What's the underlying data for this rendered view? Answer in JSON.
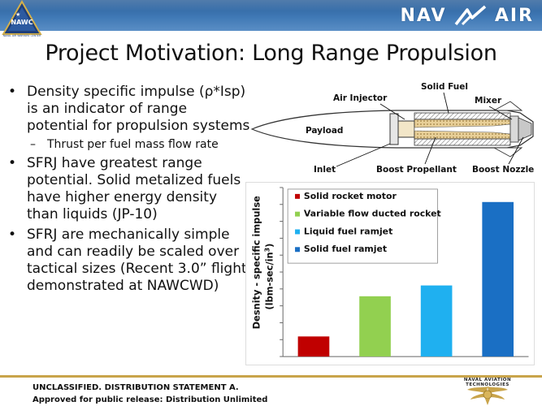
{
  "header": {
    "brand_left": "NAVAL AIR WARFARE CENTER",
    "brand_left_initials": "NAWC",
    "brand_right": [
      "NAV",
      "AIR"
    ]
  },
  "title": "Project Motivation: Long Range Propulsion",
  "bullets": [
    {
      "text": "Density specific impulse (ρ*Isp) is an indicator of range potential for propulsion systems",
      "sub": [
        "Thrust per fuel mass flow rate"
      ]
    },
    {
      "text": "SFRJ have greatest range potential.  Solid metalized fuels have higher energy density than liquids (JP-10)",
      "sub": []
    },
    {
      "text": "SFRJ are mechanically simple and can readily be scaled over tactical sizes (Recent 3.0” flight demonstrated at NAWCWD)",
      "sub": []
    }
  ],
  "diagram": {
    "labels": {
      "air_injector": "Air Injector",
      "solid_fuel": "Solid Fuel",
      "mixer": "Mixer",
      "payload": "Payload",
      "inlet": "Inlet",
      "boost_propellant": "Boost Propellant",
      "boost_nozzle": "Boost Nozzle"
    }
  },
  "chart_data": {
    "type": "bar",
    "ylabel_line1": "Desnity - specific impulse",
    "ylabel_line2": "(lbm-sec/in",
    "ylabel_sup": "3",
    "ylabel_close": ")",
    "categories": [
      "Solid rocket motor",
      "Variable flow ducted rocket",
      "Liquid fuel ramjet",
      "Solid fuel ramjet"
    ],
    "values": [
      0.13,
      0.39,
      0.46,
      1.0
    ],
    "value_scale": "relative (no y-axis values printed)",
    "colors": [
      "#c00000",
      "#92d050",
      "#1fb0f0",
      "#1a6fc4"
    ],
    "legend_position": "top-left",
    "grid": false
  },
  "footer": {
    "line1": "UNCLASSIFIED. DISTRIBUTION STATEMENT A.",
    "line2": "Approved for public release: Distribution Unlimited",
    "logo_text": "NAVAL AVIATION TECHNOLOGIES"
  },
  "colors": {
    "header_blue": "#3f78b5",
    "footer_gold": "#c9a44a"
  }
}
